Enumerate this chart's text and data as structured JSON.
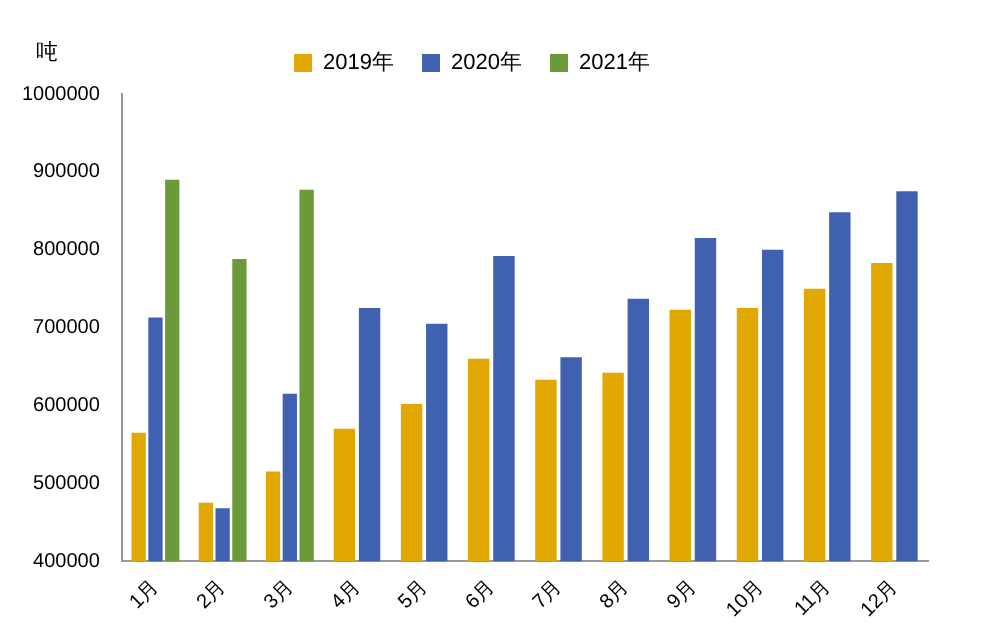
{
  "chart_data": {
    "type": "bar",
    "ylabel": "吨",
    "categories": [
      "1月",
      "2月",
      "3月",
      "4月",
      "5月",
      "6月",
      "7月",
      "8月",
      "9月",
      "10月",
      "11月",
      "12月"
    ],
    "series": [
      {
        "name": "2019年",
        "color": "#e0a800",
        "values": [
          565000,
          475000,
          515000,
          570000,
          602000,
          660000,
          633000,
          642000,
          723000,
          725000,
          750000,
          783000
        ]
      },
      {
        "name": "2020年",
        "color": "#4060b0",
        "values": [
          713000,
          468000,
          615000,
          725000,
          705000,
          792000,
          662000,
          737000,
          815000,
          800000,
          848000,
          875000
        ]
      },
      {
        "name": "2021年",
        "color": "#6a9a3a",
        "values": [
          890000,
          788000,
          877000,
          null,
          null,
          null,
          null,
          null,
          null,
          null,
          null,
          null
        ]
      }
    ],
    "ylim": [
      400000,
      1000000
    ],
    "yticks": [
      400000,
      500000,
      600000,
      700000,
      800000,
      900000,
      1000000
    ],
    "grid": false,
    "legend": "top"
  }
}
